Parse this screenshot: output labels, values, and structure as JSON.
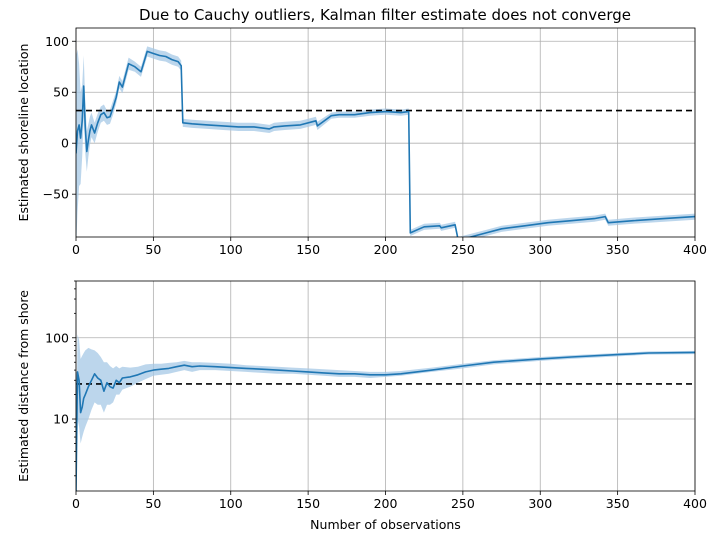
{
  "figure": {
    "title": "Due to Cauchy outliers, Kalman filter estimate does not converge"
  },
  "chart_data": [
    {
      "type": "line",
      "title": "Due to Cauchy outliers, Kalman filter estimate does not converge",
      "ylabel": "Estimated shoreline location",
      "xlabel": "",
      "xlim": [
        0,
        400
      ],
      "ylim": [
        -92,
        113
      ],
      "xticks": [
        0,
        50,
        100,
        150,
        200,
        250,
        300,
        350,
        400
      ],
      "yticks": [
        -50,
        0,
        50,
        100
      ],
      "ytick_labels": [
        "−50",
        "0",
        "50",
        "100"
      ],
      "grid": true,
      "reference_line": {
        "y": 32,
        "style": "dashed",
        "color": "#000000"
      },
      "series": [
        {
          "color": "#1f77b4",
          "band_color": "#a6c8e6",
          "x": [
            0,
            1,
            2,
            3,
            4,
            5,
            6,
            7,
            8,
            9,
            10,
            12,
            14,
            16,
            18,
            20,
            22,
            24,
            26,
            28,
            30,
            34,
            38,
            42,
            46,
            50,
            54,
            58,
            62,
            66,
            68,
            69,
            75,
            85,
            95,
            105,
            115,
            125,
            128,
            135,
            145,
            155,
            156,
            165,
            170,
            180,
            190,
            200,
            210,
            215,
            216,
            222,
            225,
            235,
            236,
            245,
            247,
            255,
            265,
            275,
            290,
            305,
            320,
            335,
            342,
            344,
            360,
            380,
            400
          ],
          "y": [
            -10,
            12,
            18,
            5,
            22,
            56,
            15,
            -8,
            3,
            12,
            18,
            10,
            20,
            28,
            30,
            25,
            26,
            35,
            45,
            60,
            55,
            78,
            75,
            70,
            90,
            88,
            86,
            85,
            82,
            80,
            76,
            20,
            19,
            18,
            17,
            16,
            16,
            14,
            16,
            17,
            18,
            22,
            17,
            27,
            28,
            28,
            30,
            31,
            30,
            31,
            -88,
            -84,
            -82,
            -81,
            -83,
            -80,
            -95,
            -92,
            -88,
            -84,
            -81,
            -78,
            -76,
            -74,
            -72,
            -78,
            -76,
            -74,
            -72
          ],
          "band_halfwidth": [
            95,
            80,
            60,
            45,
            35,
            30,
            25,
            20,
            16,
            14,
            12,
            10,
            9,
            8,
            8,
            7,
            7,
            7,
            6,
            6,
            6,
            6,
            5,
            5,
            5,
            5,
            5,
            5,
            5,
            5,
            5,
            4,
            4,
            4,
            4,
            4,
            4,
            4,
            4,
            4,
            4,
            4,
            4,
            3,
            3,
            3,
            3,
            3,
            3,
            3,
            3,
            3,
            3,
            3,
            3,
            3,
            3,
            3,
            3,
            3,
            3,
            3,
            3,
            3,
            3,
            3,
            3,
            3,
            3
          ]
        }
      ]
    },
    {
      "type": "line",
      "title": "",
      "ylabel": "Estimated distance from shore",
      "xlabel": "Number of observations",
      "xlim": [
        0,
        400
      ],
      "ylim": [
        1.3,
        500
      ],
      "yscale": "log",
      "xticks": [
        0,
        50,
        100,
        150,
        200,
        250,
        300,
        350,
        400
      ],
      "yticks": [
        10,
        100
      ],
      "ytick_labels": [
        "10",
        "100"
      ],
      "grid": true,
      "reference_line": {
        "y": 27,
        "style": "dashed",
        "color": "#000000"
      },
      "series": [
        {
          "color": "#1f77b4",
          "band_color": "#a6c8e6",
          "x": [
            0,
            1,
            2,
            3,
            4,
            5,
            6,
            8,
            10,
            12,
            14,
            16,
            18,
            20,
            22,
            24,
            26,
            28,
            30,
            35,
            40,
            45,
            50,
            55,
            60,
            65,
            70,
            75,
            80,
            90,
            100,
            110,
            120,
            130,
            140,
            150,
            160,
            170,
            180,
            190,
            200,
            210,
            220,
            230,
            250,
            270,
            300,
            320,
            350,
            370,
            400
          ],
          "y": [
            1.3,
            38,
            30,
            12,
            14,
            18,
            20,
            25,
            30,
            36,
            32,
            30,
            22,
            28,
            25,
            24,
            30,
            28,
            32,
            33,
            35,
            38,
            40,
            41,
            42,
            44,
            46,
            44,
            45,
            44,
            43,
            42,
            41,
            40,
            39,
            38,
            37,
            36,
            36,
            35,
            35,
            36,
            38,
            40,
            45,
            50,
            55,
            58,
            62,
            65,
            66
          ],
          "band_lower": [
            1.1,
            10,
            8,
            5,
            6,
            7,
            8,
            10,
            13,
            16,
            15,
            15,
            12,
            15,
            15,
            16,
            20,
            20,
            23,
            25,
            28,
            31,
            34,
            35,
            36,
            38,
            40,
            38,
            40,
            40,
            39,
            38,
            37,
            36,
            36,
            35,
            34,
            33,
            33,
            32,
            33,
            34,
            36,
            38,
            42,
            47,
            52,
            55,
            59,
            62,
            63
          ],
          "band_upper": [
            2,
            110,
            95,
            55,
            60,
            65,
            70,
            75,
            72,
            70,
            65,
            58,
            50,
            50,
            45,
            42,
            45,
            42,
            44,
            43,
            44,
            47,
            48,
            48,
            49,
            50,
            52,
            50,
            50,
            49,
            48,
            46,
            45,
            44,
            43,
            42,
            41,
            40,
            39,
            38,
            38,
            39,
            41,
            43,
            48,
            53,
            58,
            61,
            65,
            68,
            69
          ]
        }
      ]
    }
  ]
}
